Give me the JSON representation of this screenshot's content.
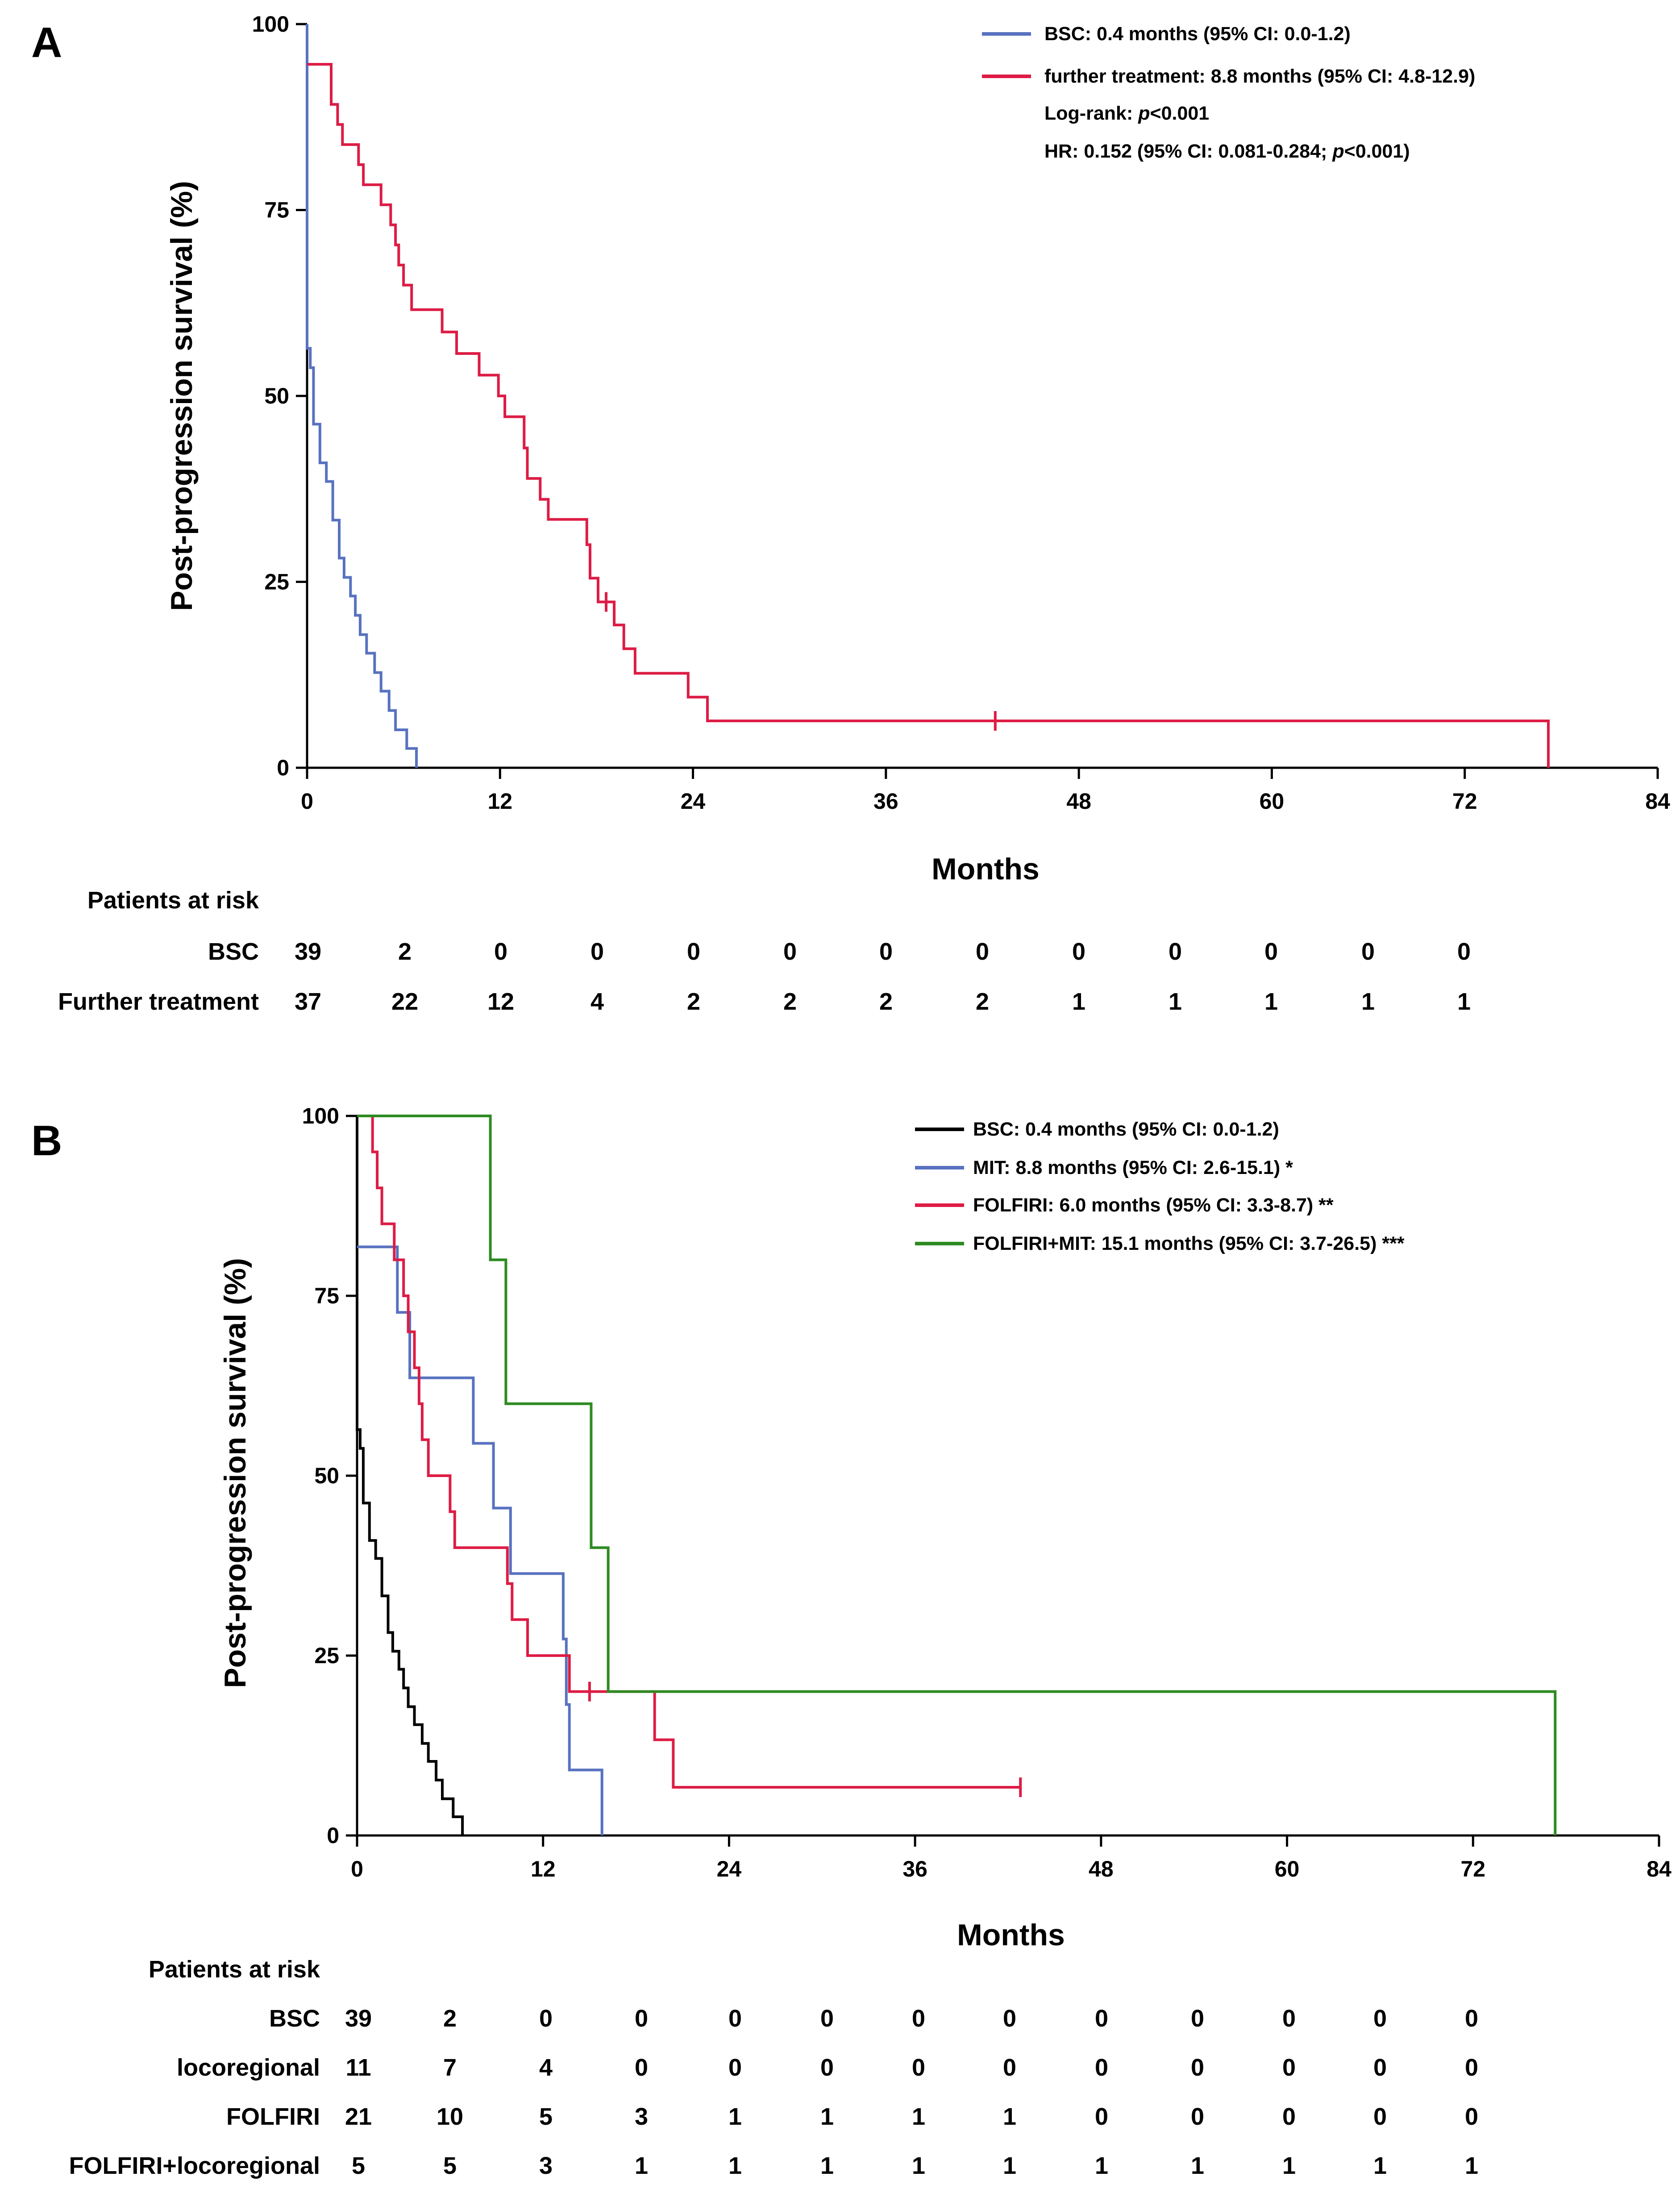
{
  "colors": {
    "bsc_a": "#5872c0",
    "further": "#dd1c45",
    "bsc_b": "#000000",
    "mit": "#5872c0",
    "folfiri": "#dd1c45",
    "folfiri_mit": "#2e8b22"
  },
  "chart_data": [
    {
      "type": "line",
      "panel_label": "A",
      "xlabel": "Months",
      "ylabel": "Post-progression survival (%)",
      "xlim": [
        0,
        84
      ],
      "ylim": [
        0,
        100
      ],
      "xticks": [
        0,
        12,
        24,
        36,
        48,
        60,
        72,
        84
      ],
      "yticks": [
        0,
        25,
        50,
        75,
        100
      ],
      "legend": [
        {
          "text": "BSC: 0.4 months (95% CI: 0.0-1.2)",
          "color": "#5872c0"
        },
        {
          "text": "further treatment: 8.8 months (95% CI: 4.8-12.9)",
          "color": "#dd1c45"
        },
        {
          "prefix": "Log-rank: ",
          "italic": "p",
          "suffix": "<0.001"
        },
        {
          "prefix": "HR: 0.152 (95% CI: 0.081-0.284; ",
          "italic": "p",
          "suffix": "<0.001)"
        }
      ],
      "series": [
        {
          "name": "BSC",
          "color": "#5872c0",
          "points": [
            [
              0,
              100
            ],
            [
              0,
              56.4
            ],
            [
              0.2,
              56.4
            ],
            [
              0.2,
              53.8
            ],
            [
              0.4,
              53.8
            ],
            [
              0.4,
              46.2
            ],
            [
              0.8,
              46.2
            ],
            [
              0.8,
              41
            ],
            [
              1.2,
              41
            ],
            [
              1.2,
              38.5
            ],
            [
              1.6,
              38.5
            ],
            [
              1.6,
              33.3
            ],
            [
              2,
              33.3
            ],
            [
              2,
              28.2
            ],
            [
              2.3,
              28.2
            ],
            [
              2.3,
              25.6
            ],
            [
              2.7,
              25.6
            ],
            [
              2.7,
              23.1
            ],
            [
              3,
              23.1
            ],
            [
              3,
              20.5
            ],
            [
              3.3,
              20.5
            ],
            [
              3.3,
              17.9
            ],
            [
              3.7,
              17.9
            ],
            [
              3.7,
              15.4
            ],
            [
              4.2,
              15.4
            ],
            [
              4.2,
              12.8
            ],
            [
              4.6,
              12.8
            ],
            [
              4.6,
              10.3
            ],
            [
              5.1,
              10.3
            ],
            [
              5.1,
              7.7
            ],
            [
              5.5,
              7.7
            ],
            [
              5.5,
              5.1
            ],
            [
              6.2,
              5.1
            ],
            [
              6.2,
              2.6
            ],
            [
              6.8,
              2.6
            ],
            [
              6.8,
              0
            ]
          ],
          "censors": []
        },
        {
          "name": "further treatment",
          "color": "#dd1c45",
          "points": [
            [
              0,
              94.6
            ],
            [
              1.5,
              94.6
            ],
            [
              1.5,
              89.2
            ],
            [
              1.9,
              89.2
            ],
            [
              1.9,
              86.5
            ],
            [
              2.2,
              86.5
            ],
            [
              2.2,
              83.8
            ],
            [
              3.2,
              83.8
            ],
            [
              3.2,
              81.1
            ],
            [
              3.5,
              81.1
            ],
            [
              3.5,
              78.4
            ],
            [
              4.6,
              78.4
            ],
            [
              4.6,
              75.7
            ],
            [
              5.2,
              75.7
            ],
            [
              5.2,
              73
            ],
            [
              5.5,
              73
            ],
            [
              5.5,
              70.3
            ],
            [
              5.7,
              70.3
            ],
            [
              5.7,
              67.6
            ],
            [
              6,
              67.6
            ],
            [
              6,
              64.9
            ],
            [
              6.5,
              64.9
            ],
            [
              6.5,
              61.6
            ],
            [
              8.4,
              61.6
            ],
            [
              8.4,
              58.6
            ],
            [
              9.3,
              58.6
            ],
            [
              9.3,
              55.7
            ],
            [
              10.7,
              55.7
            ],
            [
              10.7,
              52.8
            ],
            [
              11.9,
              52.8
            ],
            [
              11.9,
              50
            ],
            [
              12.3,
              50
            ],
            [
              12.3,
              47.2
            ],
            [
              13.5,
              47.2
            ],
            [
              13.5,
              43
            ],
            [
              13.7,
              43
            ],
            [
              13.7,
              38.9
            ],
            [
              14.5,
              38.9
            ],
            [
              14.5,
              36.1
            ],
            [
              15,
              36.1
            ],
            [
              15,
              33.4
            ],
            [
              17.4,
              33.4
            ],
            [
              17.4,
              30
            ],
            [
              17.6,
              30
            ],
            [
              17.6,
              25.5
            ],
            [
              18.1,
              25.5
            ],
            [
              18.1,
              22.3
            ],
            [
              19.1,
              22.3
            ],
            [
              19.1,
              19.2
            ],
            [
              19.7,
              19.2
            ],
            [
              19.7,
              16
            ],
            [
              20.4,
              16
            ],
            [
              20.4,
              12.7
            ],
            [
              23.7,
              12.7
            ],
            [
              23.7,
              9.5
            ],
            [
              24.9,
              9.5
            ],
            [
              24.9,
              6.3
            ],
            [
              77.2,
              6.3
            ],
            [
              77.2,
              0
            ]
          ],
          "censors": [
            [
              18.6,
              22.3
            ],
            [
              42.8,
              6.3
            ]
          ]
        }
      ],
      "risk_table": {
        "title": "Patients at risk",
        "rows": [
          {
            "label": "BSC",
            "values": [
              39,
              2,
              0,
              0,
              0,
              0,
              0,
              0,
              0,
              0,
              0,
              0,
              0
            ]
          },
          {
            "label": "Further treatment",
            "values": [
              37,
              22,
              12,
              4,
              2,
              2,
              2,
              2,
              1,
              1,
              1,
              1,
              1
            ]
          }
        ]
      }
    },
    {
      "type": "line",
      "panel_label": "B",
      "xlabel": "Months",
      "ylabel": "Post-progression survival (%)",
      "xlim": [
        0,
        84
      ],
      "ylim": [
        0,
        100
      ],
      "xticks": [
        0,
        12,
        24,
        36,
        48,
        60,
        72,
        84
      ],
      "yticks": [
        0,
        25,
        50,
        75,
        100
      ],
      "legend": [
        {
          "text": "BSC: 0.4 months (95% CI: 0.0-1.2)",
          "color": "#000000"
        },
        {
          "text": "MIT: 8.8 months (95% CI: 2.6-15.1) *",
          "color": "#5872c0"
        },
        {
          "text": "FOLFIRI: 6.0 months (95% CI: 3.3-8.7) **",
          "color": "#dd1c45"
        },
        {
          "text": "FOLFIRI+MIT: 15.1 months (95% CI: 3.7-26.5) ***",
          "color": "#2e8b22"
        }
      ],
      "series": [
        {
          "name": "BSC",
          "color": "#000000",
          "points": [
            [
              0,
              100
            ],
            [
              0,
              56.4
            ],
            [
              0.2,
              56.4
            ],
            [
              0.2,
              53.8
            ],
            [
              0.4,
              53.8
            ],
            [
              0.4,
              46.2
            ],
            [
              0.8,
              46.2
            ],
            [
              0.8,
              41
            ],
            [
              1.2,
              41
            ],
            [
              1.2,
              38.5
            ],
            [
              1.6,
              38.5
            ],
            [
              1.6,
              33.3
            ],
            [
              2,
              33.3
            ],
            [
              2,
              28.2
            ],
            [
              2.3,
              28.2
            ],
            [
              2.3,
              25.6
            ],
            [
              2.7,
              25.6
            ],
            [
              2.7,
              23.1
            ],
            [
              3,
              23.1
            ],
            [
              3,
              20.5
            ],
            [
              3.3,
              20.5
            ],
            [
              3.3,
              17.9
            ],
            [
              3.7,
              17.9
            ],
            [
              3.7,
              15.4
            ],
            [
              4.2,
              15.4
            ],
            [
              4.2,
              12.8
            ],
            [
              4.6,
              12.8
            ],
            [
              4.6,
              10.3
            ],
            [
              5.1,
              10.3
            ],
            [
              5.1,
              7.7
            ],
            [
              5.5,
              7.7
            ],
            [
              5.5,
              5.1
            ],
            [
              6.2,
              5.1
            ],
            [
              6.2,
              2.6
            ],
            [
              6.8,
              2.6
            ],
            [
              6.8,
              0
            ]
          ],
          "censors": []
        },
        {
          "name": "MIT",
          "color": "#5872c0",
          "points": [
            [
              0,
              81.8
            ],
            [
              2.6,
              81.8
            ],
            [
              2.6,
              72.7
            ],
            [
              3.4,
              72.7
            ],
            [
              3.4,
              63.6
            ],
            [
              7.5,
              63.6
            ],
            [
              7.5,
              54.5
            ],
            [
              8.8,
              54.5
            ],
            [
              8.8,
              45.5
            ],
            [
              9.9,
              45.5
            ],
            [
              9.9,
              36.4
            ],
            [
              13.3,
              36.4
            ],
            [
              13.3,
              27.3
            ],
            [
              13.5,
              27.3
            ],
            [
              13.5,
              18.2
            ],
            [
              13.7,
              18.2
            ],
            [
              13.7,
              9.1
            ],
            [
              15.8,
              9.1
            ],
            [
              15.8,
              0
            ]
          ],
          "censors": []
        },
        {
          "name": "FOLFIRI",
          "color": "#dd1c45",
          "points": [
            [
              1,
              100
            ],
            [
              1,
              95
            ],
            [
              1.3,
              95
            ],
            [
              1.3,
              90
            ],
            [
              1.6,
              90
            ],
            [
              1.6,
              85
            ],
            [
              2.4,
              85
            ],
            [
              2.4,
              80
            ],
            [
              3,
              80
            ],
            [
              3,
              75
            ],
            [
              3.3,
              75
            ],
            [
              3.3,
              70
            ],
            [
              3.7,
              70
            ],
            [
              3.7,
              65
            ],
            [
              4,
              65
            ],
            [
              4,
              60
            ],
            [
              4.2,
              60
            ],
            [
              4.2,
              55
            ],
            [
              4.6,
              55
            ],
            [
              4.6,
              50
            ],
            [
              6,
              50
            ],
            [
              6,
              45
            ],
            [
              6.3,
              45
            ],
            [
              6.3,
              40
            ],
            [
              9.7,
              40
            ],
            [
              9.7,
              35
            ],
            [
              10,
              35
            ],
            [
              10,
              30
            ],
            [
              11,
              30
            ],
            [
              11,
              25
            ],
            [
              13.7,
              25
            ],
            [
              13.7,
              20
            ],
            [
              19.2,
              20
            ],
            [
              19.2,
              13.3
            ],
            [
              20.4,
              13.3
            ],
            [
              20.4,
              6.7
            ],
            [
              42.8,
              6.7
            ]
          ],
          "censors": [
            [
              15,
              20
            ],
            [
              42.8,
              6.7
            ]
          ]
        },
        {
          "name": "FOLFIRI+MIT",
          "color": "#2e8b22",
          "points": [
            [
              0,
              100
            ],
            [
              8.6,
              100
            ],
            [
              8.6,
              80
            ],
            [
              9.6,
              80
            ],
            [
              9.6,
              60
            ],
            [
              15.1,
              60
            ],
            [
              15.1,
              40
            ],
            [
              16.2,
              40
            ],
            [
              16.2,
              20
            ],
            [
              77.3,
              20
            ],
            [
              77.3,
              0
            ]
          ],
          "censors": []
        }
      ],
      "risk_table": {
        "title": "Patients at risk",
        "rows": [
          {
            "label": "BSC",
            "values": [
              39,
              2,
              0,
              0,
              0,
              0,
              0,
              0,
              0,
              0,
              0,
              0,
              0
            ]
          },
          {
            "label": "locoregional",
            "values": [
              11,
              7,
              4,
              0,
              0,
              0,
              0,
              0,
              0,
              0,
              0,
              0,
              0
            ]
          },
          {
            "label": "FOLFIRI",
            "values": [
              21,
              10,
              5,
              3,
              1,
              1,
              1,
              1,
              0,
              0,
              0,
              0,
              0
            ]
          },
          {
            "label": "FOLFIRI+locoregional",
            "values": [
              5,
              5,
              3,
              1,
              1,
              1,
              1,
              1,
              1,
              1,
              1,
              1,
              1
            ]
          }
        ]
      }
    }
  ]
}
